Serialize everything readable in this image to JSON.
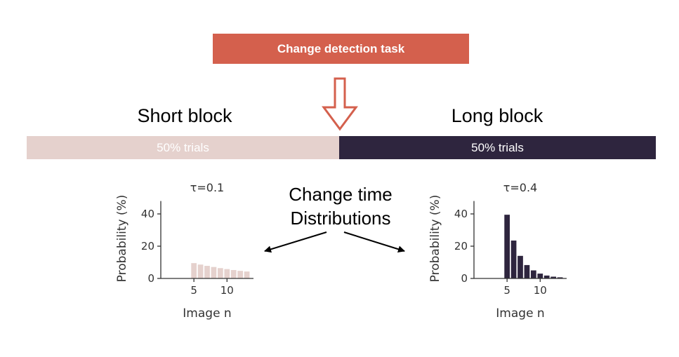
{
  "header": {
    "task_label": "Change detection task"
  },
  "blocks": {
    "short": {
      "title": "Short block",
      "trials_label": "50% trials"
    },
    "long": {
      "title": "Long block",
      "trials_label": "50% trials"
    }
  },
  "center_label": {
    "line1": "Change time",
    "line2": "Distributions"
  },
  "colors": {
    "task_box": "#d4604d",
    "arrow_outline": "#d4604d",
    "short": "#e5d1cd",
    "long": "#2e253e",
    "axes": "#333333",
    "text": "#333333"
  },
  "chart_data": [
    {
      "type": "bar",
      "title": "τ=0.1",
      "xlabel": "Image n",
      "ylabel": "Probability (%)",
      "x": [
        5,
        6,
        7,
        8,
        9,
        10,
        11,
        12,
        13
      ],
      "values": [
        9.5,
        8.6,
        7.8,
        7.1,
        6.4,
        5.8,
        5.2,
        4.7,
        4.3
      ],
      "xticks": [
        "5",
        "10"
      ],
      "yticks": [
        "0",
        "20",
        "40"
      ],
      "xlim": [
        0,
        14
      ],
      "ylim": [
        0,
        50
      ],
      "color": "#e5d1cd"
    },
    {
      "type": "bar",
      "title": "τ=0.4",
      "xlabel": "Image n",
      "ylabel": "Probability (%)",
      "x": [
        5,
        6,
        7,
        8,
        9,
        10,
        11,
        12,
        13
      ],
      "values": [
        39.5,
        23.5,
        14,
        8.3,
        5,
        3,
        1.8,
        1.1,
        0.7
      ],
      "xticks": [
        "5",
        "10"
      ],
      "yticks": [
        "0",
        "20",
        "40"
      ],
      "xlim": [
        0,
        14
      ],
      "ylim": [
        0,
        50
      ],
      "color": "#2e253e"
    }
  ]
}
